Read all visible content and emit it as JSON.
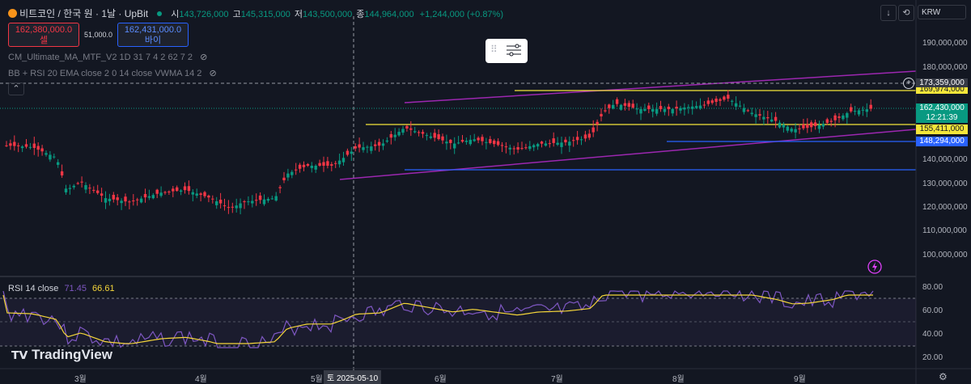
{
  "header": {
    "coin_icon": "bitcoin-coin-icon",
    "symbol_title": "비트코인 / 한국 원 · 1날 · UpBit",
    "open_label": "시",
    "open_value": "143,726,000",
    "high_label": "고",
    "high_value": "145,315,000",
    "low_label": "저",
    "low_value": "143,500,000",
    "close_label": "종",
    "close_value": "144,964,000",
    "change": "+1,244,000 (+0.87%)"
  },
  "trade": {
    "sell_price": "162,380,000.0",
    "sell_label": "셀",
    "spread": "51,000.0",
    "buy_price": "162,431,000.0",
    "buy_label": "바이"
  },
  "indicators": [
    {
      "text": "CM_Ultimate_MA_MTF_V2 1D 31 7 4 2 62 7 2",
      "icon": "eye-off-icon"
    },
    {
      "text": "BB + RSI 20 EMA close 2 0 14 close VWMA 14 2",
      "icon": "eye-off-icon"
    }
  ],
  "rsi": {
    "label": "RSI 14 close",
    "value1": "71.45",
    "value2": "66.61",
    "ticks": [
      "80.00",
      "60.00",
      "40.00",
      "20.00"
    ]
  },
  "price_axis": {
    "currency": "KRW",
    "ticks": [
      "190,000,000",
      "180,000,000",
      "140,000,000",
      "130,000,000",
      "120,000,000",
      "110,000,000",
      "100,000,000"
    ],
    "crosshair_price": "173,359,000",
    "tag_partial": "169,974,000",
    "current_price": "162,430,000",
    "countdown": "12:21:39",
    "yellow_level": "155,411,000",
    "blue_level": "148,294,000"
  },
  "time_axis": {
    "months": [
      "3월",
      "4월",
      "5월",
      "6월",
      "7월",
      "8월",
      "9월"
    ],
    "crosshair_date": "토 2025-05-10"
  },
  "watermark": "TradingView",
  "colors": {
    "up": "#089981",
    "down": "#f23645",
    "yellow": "#f5e63a",
    "blue": "#2962ff",
    "purple": "#9c27b0"
  }
}
